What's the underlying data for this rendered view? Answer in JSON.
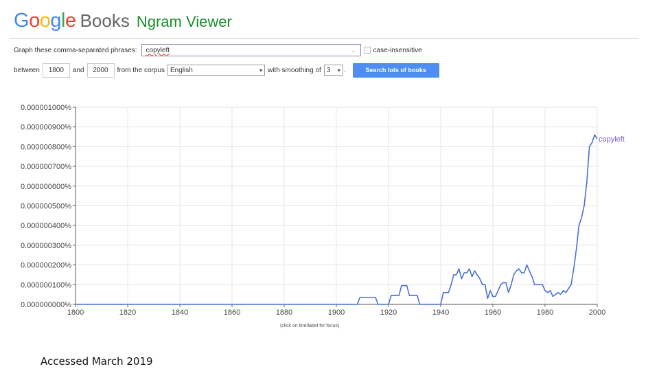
{
  "header": {
    "logo_google": "Google",
    "logo_books": "Books",
    "app_title": "Ngram Viewer"
  },
  "form": {
    "phrase_label": "Graph these comma-separated phrases:",
    "phrase_value": "copyleft",
    "case_insensitive_label": "case-insensitive",
    "between_label": "between",
    "year_start": "1800",
    "and_label": "and",
    "year_end": "2000",
    "corpus_label": "from the corpus",
    "corpus_value": "English",
    "smoothing_label": "with smoothing of",
    "smoothing_value": "3",
    "smoothing_suffix": ".",
    "search_button": "Search lots of books"
  },
  "chart_hint": "(click on line/label for focus)",
  "footer_note": "Accessed March 2019",
  "colors": {
    "series": "#4a6fd6",
    "series_label": "#7b5cd0",
    "button": "#4d8ef0"
  },
  "chart_data": {
    "type": "line",
    "title": "",
    "xlabel": "",
    "ylabel": "",
    "xlim": [
      1800,
      2000
    ],
    "ylim": [
      0,
      1e-08
    ],
    "grid": true,
    "x_ticks": [
      "1800",
      "1820",
      "1840",
      "1860",
      "1880",
      "1900",
      "1920",
      "1940",
      "1960",
      "1980",
      "2000"
    ],
    "y_ticks": [
      "0.000000000%",
      "0.000000100%",
      "0.000000200%",
      "0.000000300%",
      "0.000000400%",
      "0.000000500%",
      "0.000000600%",
      "0.000000700%",
      "0.000000800%",
      "0.000000900%",
      "0.000001000%"
    ],
    "series": [
      {
        "name": "copyleft",
        "x": [
          1800,
          1908,
          1909,
          1910,
          1911,
          1912,
          1913,
          1914,
          1915,
          1916,
          1917,
          1918,
          1919,
          1920,
          1921,
          1922,
          1923,
          1924,
          1925,
          1926,
          1927,
          1928,
          1929,
          1930,
          1931,
          1932,
          1933,
          1934,
          1935,
          1936,
          1937,
          1938,
          1939,
          1940,
          1941,
          1942,
          1943,
          1944,
          1945,
          1946,
          1947,
          1948,
          1949,
          1950,
          1951,
          1952,
          1953,
          1954,
          1955,
          1956,
          1957,
          1958,
          1959,
          1960,
          1961,
          1962,
          1963,
          1964,
          1965,
          1966,
          1967,
          1968,
          1969,
          1970,
          1971,
          1972,
          1973,
          1974,
          1975,
          1976,
          1977,
          1978,
          1979,
          1980,
          1981,
          1982,
          1983,
          1984,
          1985,
          1986,
          1987,
          1988,
          1989,
          1990,
          1991,
          1992,
          1993,
          1994,
          1995,
          1996,
          1997,
          1998,
          1999,
          2000
        ],
        "values": [
          0,
          0,
          3.5e-10,
          3.5e-10,
          3.5e-10,
          3.5e-10,
          3.5e-10,
          3.5e-10,
          3.5e-10,
          0,
          0,
          0,
          0,
          0,
          4.5e-10,
          4.5e-10,
          4.5e-10,
          4.5e-10,
          9.5e-10,
          9.5e-10,
          9.5e-10,
          4.5e-10,
          4.5e-10,
          4.5e-10,
          4.5e-10,
          0,
          0,
          0,
          0,
          0,
          0,
          0,
          0,
          0,
          6e-10,
          6e-10,
          6e-10,
          1e-09,
          1.5e-09,
          1.5e-09,
          1.8e-09,
          1.3e-09,
          1.6e-09,
          1.6e-09,
          1.8e-09,
          1.4e-09,
          1.7e-09,
          1.5e-09,
          1.3e-09,
          1e-09,
          1e-09,
          3e-10,
          7e-10,
          4e-10,
          4e-10,
          7e-10,
          1e-09,
          1.1e-09,
          1.1e-09,
          6e-10,
          1e-09,
          1.5e-09,
          1.7e-09,
          1.8e-09,
          1.6e-09,
          1.6e-09,
          2e-09,
          1.7e-09,
          1.4e-09,
          1e-09,
          1e-09,
          1e-09,
          1e-09,
          7e-10,
          6e-10,
          7e-10,
          4e-10,
          5e-10,
          6e-10,
          5e-10,
          7e-10,
          6e-10,
          8e-10,
          1e-09,
          1.8e-09,
          2.8e-09,
          4e-09,
          4.4e-09,
          5e-09,
          6.2e-09,
          8e-09,
          8.2e-09,
          8.6e-09,
          8.4e-09
        ]
      }
    ]
  }
}
